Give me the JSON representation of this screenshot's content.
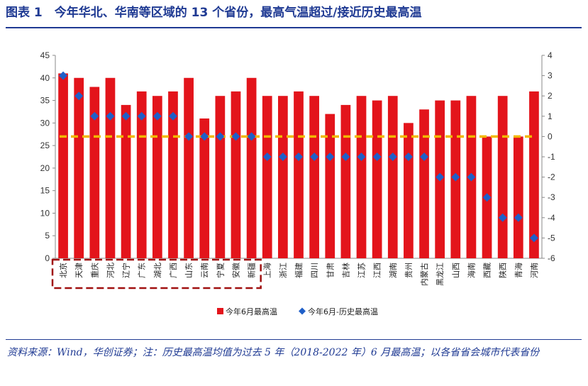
{
  "figure": {
    "title": "图表 1　今年华北、华南等区域的 13 个省份，最高气温超过/接近历史最高温",
    "note": "资料来源：Wind，华创证券；注：历史最高温均值为过去 5 年（2018-2022 年）6 月最高温；以各省省会城市代表省份"
  },
  "chart_data": {
    "type": "bar",
    "categories": [
      "北京",
      "天津",
      "重庆",
      "河北",
      "辽宁",
      "广东",
      "湖北",
      "广西",
      "山东",
      "云南",
      "宁夏",
      "安徽",
      "新疆",
      "上海",
      "浙江",
      "福建",
      "四川",
      "甘肃",
      "吉林",
      "江苏",
      "江西",
      "湖南",
      "贵州",
      "内蒙古",
      "黑龙江",
      "山西",
      "海南",
      "西藏",
      "陕西",
      "青海",
      "河南"
    ],
    "series": [
      {
        "name": "今年6月最高温",
        "axis": "left",
        "color": "#e3141b",
        "values": [
          41,
          40,
          38,
          40,
          34,
          37,
          36,
          37,
          40,
          31,
          36,
          37,
          40,
          36,
          36,
          37,
          36,
          32,
          34,
          36,
          35,
          36,
          30,
          33,
          35,
          35,
          36,
          27,
          36,
          27,
          37
        ]
      },
      {
        "name": "今年6月-历史最高温",
        "axis": "right",
        "color": "#1f5fc8",
        "values": [
          3,
          2,
          1,
          1,
          1,
          1,
          1,
          1,
          0,
          0,
          0,
          0,
          0,
          -1,
          -1,
          -1,
          -1,
          -1,
          -1,
          -1,
          -1,
          -1,
          -1,
          -1,
          -2,
          -2,
          -2,
          -3,
          -4,
          -4,
          -5
        ]
      }
    ],
    "reference_line": {
      "axis": "right",
      "value": 0,
      "color": "#f2b800",
      "style": "dashed"
    },
    "highlighted_categories_count": 13,
    "highlight_color": "#a01010",
    "y_left": {
      "min": 0,
      "max": 45,
      "ticks": [
        0,
        5,
        10,
        15,
        20,
        25,
        30,
        35,
        40,
        45
      ]
    },
    "y_right": {
      "min": -6,
      "max": 4,
      "ticks": [
        -6,
        -5,
        -4,
        -3,
        -2,
        -1,
        0,
        1,
        2,
        3,
        4
      ]
    },
    "legend_position": "bottom"
  }
}
